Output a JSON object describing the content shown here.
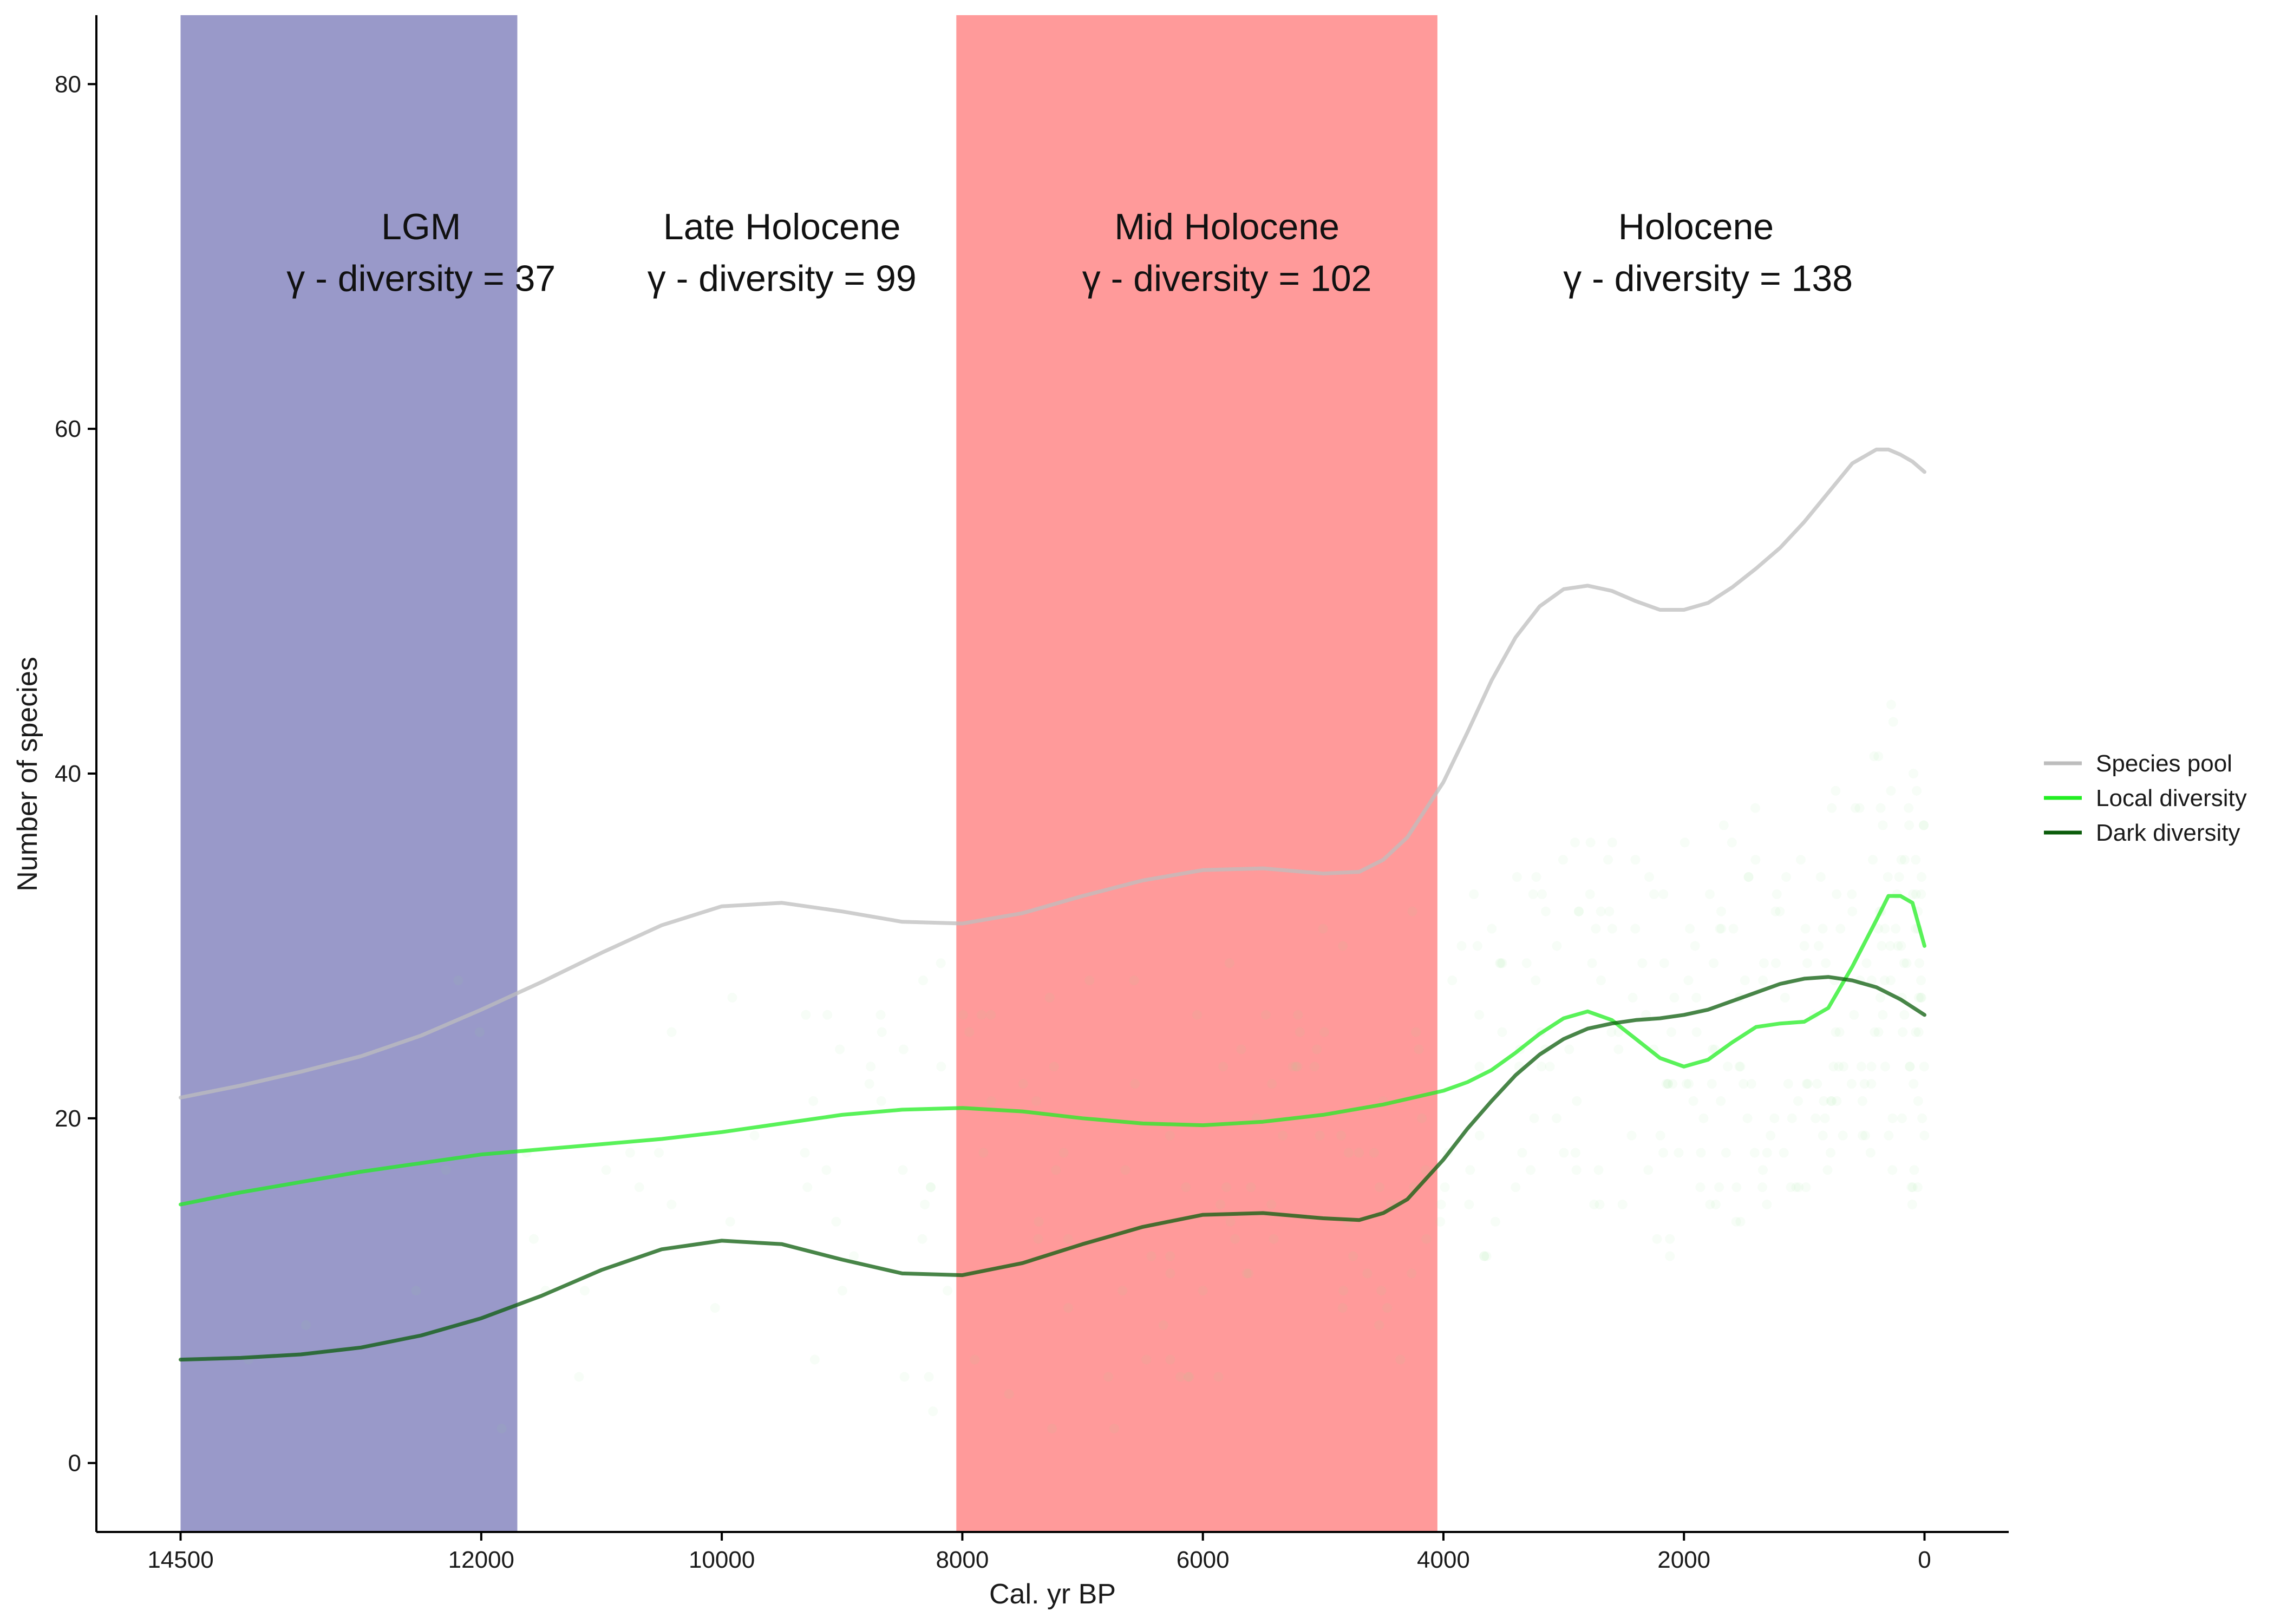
{
  "chart_data": {
    "type": "line",
    "xlabel": "Cal. yr BP",
    "ylabel": "Number of species",
    "xlim": [
      15200,
      -700
    ],
    "ylim": [
      -4,
      84
    ],
    "x_reversed": true,
    "x_ticks": [
      14500,
      12000,
      10000,
      8000,
      6000,
      4000,
      2000,
      0
    ],
    "y_ticks": [
      0,
      20,
      40,
      60,
      80
    ],
    "grid": false,
    "legend_position": "right",
    "bands": [
      {
        "x_start": 14500,
        "x_end": 11700,
        "color": "#9999c9"
      },
      {
        "x_start": 8050,
        "x_end": 4050,
        "color": "#ff9a9a"
      }
    ],
    "annotations": [
      {
        "x": 12500,
        "y": 71,
        "text": "LGM"
      },
      {
        "x": 12500,
        "y": 68,
        "text": "γ - diversity = 37"
      },
      {
        "x": 9500,
        "y": 71,
        "text": "Late Holocene"
      },
      {
        "x": 9500,
        "y": 68,
        "text": "γ - diversity = 99"
      },
      {
        "x": 5800,
        "y": 71,
        "text": "Mid Holocene"
      },
      {
        "x": 5800,
        "y": 68,
        "text": "γ - diversity = 102"
      },
      {
        "x": 1900,
        "y": 71,
        "text": "Holocene"
      },
      {
        "x": 1800,
        "y": 68,
        "text": "γ - diversity = 138"
      }
    ],
    "series": [
      {
        "name": "Species pool",
        "color": "#bdbdbd",
        "x": [
          14500,
          14000,
          13500,
          13000,
          12500,
          12000,
          11500,
          11000,
          10500,
          10000,
          9500,
          9000,
          8500,
          8000,
          7500,
          7000,
          6500,
          6000,
          5500,
          5000,
          4700,
          4500,
          4300,
          4000,
          3800,
          3600,
          3400,
          3200,
          3000,
          2800,
          2600,
          2400,
          2200,
          2000,
          1800,
          1600,
          1400,
          1200,
          1000,
          800,
          600,
          400,
          300,
          200,
          100,
          0
        ],
        "y": [
          21.2,
          21.9,
          22.7,
          23.6,
          24.8,
          26.3,
          27.9,
          29.6,
          31.2,
          32.3,
          32.5,
          32.0,
          31.4,
          31.3,
          31.9,
          32.9,
          33.8,
          34.4,
          34.5,
          34.2,
          34.3,
          35.0,
          36.3,
          39.5,
          42.4,
          45.4,
          47.9,
          49.7,
          50.7,
          50.9,
          50.6,
          50.0,
          49.5,
          49.5,
          49.9,
          50.8,
          51.9,
          53.1,
          54.6,
          56.3,
          58.0,
          58.8,
          58.8,
          58.5,
          58.1,
          57.5
        ]
      },
      {
        "name": "Local diversity",
        "color": "#22ee22",
        "x": [
          14500,
          14000,
          13500,
          13000,
          12500,
          12000,
          11500,
          11000,
          10500,
          10000,
          9500,
          9000,
          8500,
          8000,
          7500,
          7000,
          6500,
          6000,
          5500,
          5000,
          4500,
          4000,
          3800,
          3600,
          3400,
          3200,
          3000,
          2800,
          2600,
          2400,
          2200,
          2000,
          1800,
          1600,
          1400,
          1200,
          1000,
          800,
          600,
          400,
          300,
          200,
          100,
          0
        ],
        "y": [
          15.0,
          15.7,
          16.3,
          16.9,
          17.4,
          17.9,
          18.2,
          18.5,
          18.8,
          19.2,
          19.7,
          20.2,
          20.5,
          20.6,
          20.4,
          20.0,
          19.7,
          19.6,
          19.8,
          20.2,
          20.8,
          21.6,
          22.1,
          22.8,
          23.8,
          24.9,
          25.8,
          26.2,
          25.7,
          24.6,
          23.5,
          23.0,
          23.4,
          24.4,
          25.3,
          25.5,
          25.6,
          26.4,
          28.8,
          31.5,
          32.9,
          32.9,
          32.5,
          30.0
        ]
      },
      {
        "name": "Dark diversity",
        "color": "#0b5c0b",
        "x": [
          14500,
          14000,
          13500,
          13000,
          12500,
          12000,
          11500,
          11000,
          10500,
          10000,
          9500,
          9000,
          8500,
          8000,
          7500,
          7000,
          6500,
          6000,
          5500,
          5000,
          4700,
          4500,
          4300,
          4000,
          3800,
          3600,
          3400,
          3200,
          3000,
          2800,
          2600,
          2400,
          2200,
          2000,
          1800,
          1600,
          1400,
          1200,
          1000,
          800,
          600,
          400,
          200,
          0
        ],
        "y": [
          6.0,
          6.1,
          6.3,
          6.7,
          7.4,
          8.4,
          9.7,
          11.2,
          12.4,
          12.9,
          12.7,
          11.8,
          11.0,
          10.9,
          11.6,
          12.7,
          13.7,
          14.4,
          14.5,
          14.2,
          14.1,
          14.5,
          15.3,
          17.6,
          19.4,
          21.0,
          22.5,
          23.7,
          24.6,
          25.2,
          25.5,
          25.7,
          25.8,
          26.0,
          26.3,
          26.8,
          27.3,
          27.8,
          28.1,
          28.2,
          28.0,
          27.6,
          26.9,
          26.0
        ]
      }
    ]
  }
}
